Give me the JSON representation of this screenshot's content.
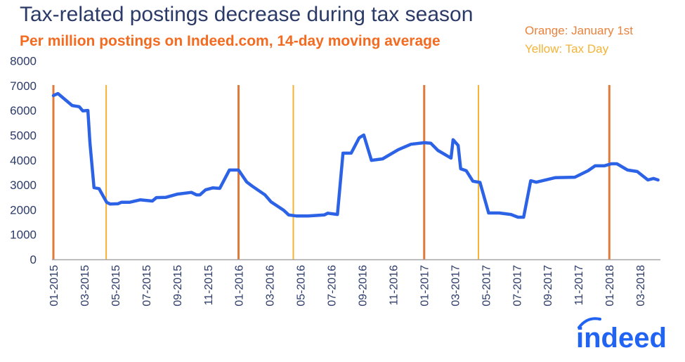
{
  "chart_data": {
    "type": "line",
    "title": "Tax-related postings decrease during tax season",
    "subtitle": "Per million postings on Indeed.com, 14-day moving average",
    "xlabel": "",
    "ylabel": "",
    "ylim": [
      0,
      8000
    ],
    "yticks": [
      0,
      1000,
      2000,
      3000,
      4000,
      5000,
      6000,
      7000,
      8000
    ],
    "xlim": [
      "2015-01-01",
      "2018-04-10"
    ],
    "xtick_labels": [
      "01-2015",
      "03-2015",
      "05-2015",
      "07-2015",
      "09-2015",
      "11-2015",
      "01-2016",
      "03-2016",
      "05-2016",
      "07-2016",
      "09-2016",
      "11-2016",
      "01-2017",
      "03-2017",
      "05-2017",
      "07-2017",
      "09-2017",
      "11-2017",
      "01-2018",
      "03-2018"
    ],
    "grid": false,
    "legend": {
      "position": "top-right",
      "entries": [
        {
          "label": "Orange: January 1st",
          "color": "#e8823c"
        },
        {
          "label": "Yellow: Tax Day",
          "color": "#f5b335"
        }
      ]
    },
    "reference_lines": [
      {
        "date": "2015-01-01",
        "kind": "January 1st",
        "color": "#e07a3a"
      },
      {
        "date": "2015-04-15",
        "kind": "Tax Day",
        "color": "#f5b335"
      },
      {
        "date": "2016-01-01",
        "kind": "January 1st",
        "color": "#e07a3a"
      },
      {
        "date": "2016-04-18",
        "kind": "Tax Day",
        "color": "#f5b335"
      },
      {
        "date": "2017-01-01",
        "kind": "January 1st",
        "color": "#e07a3a"
      },
      {
        "date": "2017-04-18",
        "kind": "Tax Day",
        "color": "#f5b335"
      },
      {
        "date": "2018-01-01",
        "kind": "January 1st",
        "color": "#e07a3a"
      }
    ],
    "series": [
      {
        "color": "#2c62e6",
        "points": [
          [
            "2015-01-01",
            6600
          ],
          [
            "2015-01-10",
            6680
          ],
          [
            "2015-02-07",
            6200
          ],
          [
            "2015-02-21",
            6150
          ],
          [
            "2015-02-28",
            5980
          ],
          [
            "2015-03-10",
            6000
          ],
          [
            "2015-03-14",
            4700
          ],
          [
            "2015-03-22",
            2890
          ],
          [
            "2015-04-01",
            2850
          ],
          [
            "2015-04-16",
            2300
          ],
          [
            "2015-04-23",
            2230
          ],
          [
            "2015-05-08",
            2240
          ],
          [
            "2015-05-15",
            2300
          ],
          [
            "2015-05-31",
            2300
          ],
          [
            "2015-06-21",
            2400
          ],
          [
            "2015-07-15",
            2350
          ],
          [
            "2015-07-23",
            2490
          ],
          [
            "2015-08-11",
            2500
          ],
          [
            "2015-09-03",
            2630
          ],
          [
            "2015-09-30",
            2700
          ],
          [
            "2015-10-10",
            2600
          ],
          [
            "2015-10-17",
            2600
          ],
          [
            "2015-10-28",
            2800
          ],
          [
            "2015-11-11",
            2880
          ],
          [
            "2015-11-25",
            2860
          ],
          [
            "2015-12-14",
            3600
          ],
          [
            "2016-01-01",
            3600
          ],
          [
            "2016-01-17",
            3120
          ],
          [
            "2016-01-28",
            2950
          ],
          [
            "2016-02-22",
            2600
          ],
          [
            "2016-03-05",
            2320
          ],
          [
            "2016-03-30",
            1980
          ],
          [
            "2016-04-09",
            1790
          ],
          [
            "2016-04-24",
            1750
          ],
          [
            "2016-05-17",
            1750
          ],
          [
            "2016-06-18",
            1790
          ],
          [
            "2016-06-25",
            1860
          ],
          [
            "2016-07-14",
            1810
          ],
          [
            "2016-07-25",
            4280
          ],
          [
            "2016-08-10",
            4280
          ],
          [
            "2016-08-26",
            4900
          ],
          [
            "2016-09-04",
            5010
          ],
          [
            "2016-09-19",
            3990
          ],
          [
            "2016-10-11",
            4050
          ],
          [
            "2016-11-11",
            4420
          ],
          [
            "2016-12-06",
            4640
          ],
          [
            "2017-01-01",
            4700
          ],
          [
            "2017-01-14",
            4680
          ],
          [
            "2017-01-28",
            4390
          ],
          [
            "2017-02-23",
            4080
          ],
          [
            "2017-02-27",
            4820
          ],
          [
            "2017-03-09",
            4590
          ],
          [
            "2017-03-14",
            3650
          ],
          [
            "2017-03-25",
            3570
          ],
          [
            "2017-04-07",
            3150
          ],
          [
            "2017-04-21",
            3100
          ],
          [
            "2017-05-08",
            1870
          ],
          [
            "2017-05-29",
            1870
          ],
          [
            "2017-06-21",
            1810
          ],
          [
            "2017-07-05",
            1700
          ],
          [
            "2017-07-16",
            1700
          ],
          [
            "2017-07-30",
            3170
          ],
          [
            "2017-08-10",
            3110
          ],
          [
            "2017-09-16",
            3290
          ],
          [
            "2017-10-25",
            3310
          ],
          [
            "2017-11-20",
            3570
          ],
          [
            "2017-12-04",
            3770
          ],
          [
            "2017-12-22",
            3770
          ],
          [
            "2018-01-05",
            3850
          ],
          [
            "2018-01-16",
            3850
          ],
          [
            "2018-02-06",
            3600
          ],
          [
            "2018-02-25",
            3540
          ],
          [
            "2018-03-18",
            3200
          ],
          [
            "2018-03-29",
            3260
          ],
          [
            "2018-04-07",
            3200
          ]
        ]
      }
    ]
  },
  "logo": {
    "text": "indeed",
    "color": "#2164f3"
  }
}
